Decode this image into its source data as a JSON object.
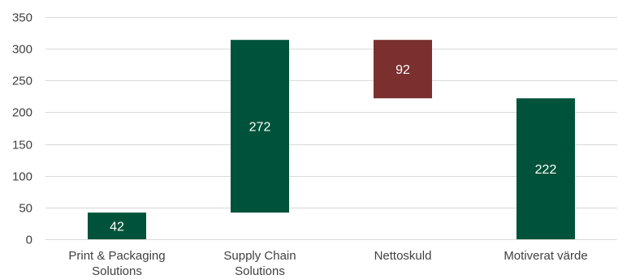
{
  "chart_data": {
    "type": "bar",
    "subtype": "waterfall",
    "categories": [
      [
        "Print & Packaging",
        "Solutions"
      ],
      [
        "Supply Chain",
        "Solutions"
      ],
      [
        "Nettoskuld"
      ],
      [
        "Motiverat värde"
      ]
    ],
    "bars": [
      {
        "base": 0,
        "value": 42,
        "label": "42",
        "color": "#00533a"
      },
      {
        "base": 42,
        "value": 272,
        "label": "272",
        "color": "#00533a"
      },
      {
        "base": 222,
        "value": 92,
        "label": "92",
        "color": "#7b2f2f"
      },
      {
        "base": 0,
        "value": 222,
        "label": "222",
        "color": "#00533a"
      }
    ],
    "ylim": [
      0,
      350
    ],
    "yticks": [
      0,
      50,
      100,
      150,
      200,
      250,
      300,
      350
    ],
    "grid": true,
    "legend": "none",
    "colors": {
      "increase": "#00533a",
      "decrease": "#7b2f2f",
      "gridline": "#d9d9d9",
      "axis_text": "#404040"
    }
  }
}
